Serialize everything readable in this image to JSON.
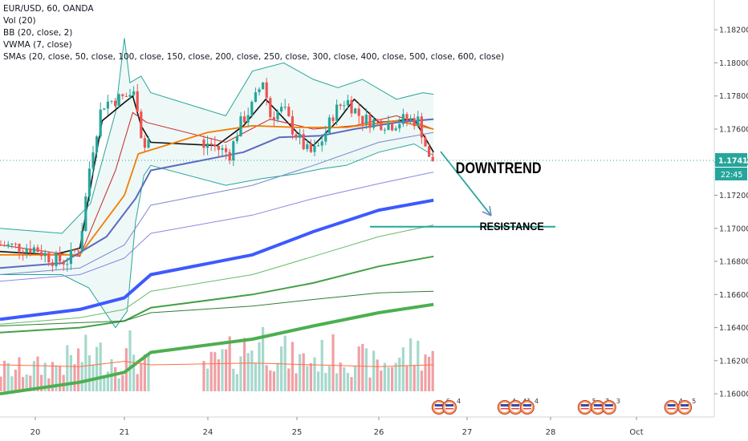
{
  "legend": {
    "symbol_line": "EUR/USD, 60, OANDA",
    "indicators": [
      "Vol (20)",
      "BB (20, close, 2)",
      "VWMA (7, close)",
      "SMAs (20, close, 50, close, 100, close, 150, close, 200, close, 250, close, 300, close, 400, close, 500, close, 600, close)"
    ]
  },
  "last_price": {
    "label": "1.17411",
    "value": 1.17411,
    "countdown": "22:45",
    "color": "#26a69a"
  },
  "annotations": {
    "downtrend": "DOWNTREND",
    "resistance": "RESISTANCE",
    "resistance_level": 1.1701
  },
  "event_markers": [
    {
      "day": 26.68,
      "text": "6"
    },
    {
      "day": 26.8,
      "text": "4"
    },
    {
      "day": 27.45,
      "text": "4"
    },
    {
      "day": 27.58,
      "text": "41"
    },
    {
      "day": 27.72,
      "text": "4"
    },
    {
      "day": 28.4,
      "text": "5"
    },
    {
      "day": 28.55,
      "text": "7"
    },
    {
      "day": 28.68,
      "text": "3"
    },
    {
      "day": 29.45,
      "text": "4"
    },
    {
      "day": 29.62,
      "text": "5"
    }
  ],
  "chart_data": {
    "type": "candlestick",
    "symbol": "EUR/USD",
    "interval": "60",
    "source": "OANDA",
    "x_unit": "day of month (hourly candles)",
    "x_ticks": [
      {
        "day": 20,
        "label": "20"
      },
      {
        "day": 21,
        "label": "21"
      },
      {
        "day": 24,
        "label": "24"
      },
      {
        "day": 25,
        "label": "25"
      },
      {
        "day": 26,
        "label": "26"
      },
      {
        "day": 27,
        "label": "27"
      },
      {
        "day": 28,
        "label": "28"
      },
      {
        "day": 29,
        "label": "Oct"
      }
    ],
    "y_ticks": [
      1.182,
      1.18,
      1.178,
      1.176,
      1.174,
      1.172,
      1.17,
      1.168,
      1.166,
      1.164,
      1.162,
      1.16
    ],
    "y_range": [
      1.1586,
      1.1838
    ],
    "x_range": [
      19.8,
      30.0
    ],
    "colors": {
      "up": "#26a69a",
      "down": "#ef5350",
      "vol_up": "#a6d8cc",
      "vol_down": "#f0a0a4"
    },
    "price_keypoints": [
      [
        19.8,
        1.169
      ],
      [
        20.0,
        1.1688
      ],
      [
        20.2,
        1.1681
      ],
      [
        20.35,
        1.168
      ],
      [
        20.5,
        1.169
      ],
      [
        20.62,
        1.1742
      ],
      [
        20.75,
        1.1775
      ],
      [
        20.9,
        1.1778
      ],
      [
        21.1,
        1.178
      ],
      [
        21.3,
        1.1782
      ],
      [
        21.45,
        1.1777
      ],
      [
        21.55,
        1.1762
      ],
      [
        21.7,
        1.1748
      ],
      [
        21.85,
        1.1754
      ],
      [
        21.95,
        1.175
      ],
      [
        23.85,
        1.1747
      ],
      [
        24.0,
        1.1752
      ],
      [
        24.12,
        1.1748
      ],
      [
        24.25,
        1.1745
      ],
      [
        24.35,
        1.1762
      ],
      [
        24.5,
        1.1774
      ],
      [
        24.62,
        1.179
      ],
      [
        24.7,
        1.1768
      ],
      [
        24.85,
        1.1772
      ],
      [
        24.95,
        1.176
      ],
      [
        25.05,
        1.1752
      ],
      [
        25.15,
        1.1745
      ],
      [
        25.25,
        1.1748
      ],
      [
        25.35,
        1.1758
      ],
      [
        25.45,
        1.177
      ],
      [
        25.6,
        1.1778
      ],
      [
        25.7,
        1.1772
      ],
      [
        25.8,
        1.1766
      ],
      [
        26.0,
        1.1764
      ],
      [
        26.15,
        1.1763
      ],
      [
        26.3,
        1.1766
      ],
      [
        26.45,
        1.1765
      ],
      [
        26.52,
        1.1752
      ],
      [
        26.57,
        1.1741
      ],
      [
        26.62,
        1.1741
      ]
    ],
    "volume_keypoints": [
      [
        19.8,
        0.25
      ],
      [
        20.2,
        0.3
      ],
      [
        20.62,
        0.45
      ],
      [
        21.0,
        0.35
      ],
      [
        21.3,
        0.55
      ],
      [
        21.6,
        0.3
      ],
      [
        24.0,
        0.3
      ],
      [
        24.62,
        0.6
      ],
      [
        25.0,
        0.35
      ],
      [
        25.5,
        0.45
      ],
      [
        26.0,
        0.3
      ],
      [
        26.5,
        0.5
      ],
      [
        26.62,
        0.35
      ]
    ],
    "series": [
      {
        "name": "VWMA (7, close)",
        "color": "#111111",
        "width": 1.6,
        "points": [
          [
            19.8,
            1.1686
          ],
          [
            20.2,
            1.1684
          ],
          [
            20.5,
            1.1688
          ],
          [
            20.75,
            1.1765
          ],
          [
            21.0,
            1.1776
          ],
          [
            21.3,
            1.178
          ],
          [
            21.6,
            1.1762
          ],
          [
            21.95,
            1.1752
          ],
          [
            24.1,
            1.175
          ],
          [
            24.4,
            1.1762
          ],
          [
            24.65,
            1.1778
          ],
          [
            25.0,
            1.1758
          ],
          [
            25.2,
            1.175
          ],
          [
            25.5,
            1.1765
          ],
          [
            25.7,
            1.1778
          ],
          [
            26.0,
            1.1764
          ],
          [
            26.4,
            1.1766
          ],
          [
            26.62,
            1.1746
          ]
        ]
      },
      {
        "name": "SMA 20",
        "color": "#c62828",
        "width": 1.0,
        "points": [
          [
            19.8,
            1.169
          ],
          [
            20.5,
            1.1683
          ],
          [
            20.9,
            1.1735
          ],
          [
            21.3,
            1.177
          ],
          [
            21.8,
            1.1764
          ],
          [
            24.2,
            1.1752
          ],
          [
            24.7,
            1.1766
          ],
          [
            25.2,
            1.176
          ],
          [
            25.7,
            1.1762
          ],
          [
            26.2,
            1.1768
          ],
          [
            26.62,
            1.176
          ]
        ]
      },
      {
        "name": "SMA 50",
        "color": "#f57c00",
        "width": 1.8,
        "points": [
          [
            19.8,
            1.1684
          ],
          [
            20.5,
            1.1684
          ],
          [
            21.0,
            1.172
          ],
          [
            21.5,
            1.1745
          ],
          [
            24.0,
            1.1758
          ],
          [
            24.5,
            1.1762
          ],
          [
            25.0,
            1.1761
          ],
          [
            25.6,
            1.1761
          ],
          [
            26.2,
            1.1765
          ],
          [
            26.62,
            1.176
          ]
        ]
      },
      {
        "name": "SMA 100",
        "color": "#5c6bc0",
        "width": 2.0,
        "points": [
          [
            19.8,
            1.1676
          ],
          [
            20.3,
            1.1679
          ],
          [
            20.8,
            1.1695
          ],
          [
            21.4,
            1.1718
          ],
          [
            21.95,
            1.1735
          ],
          [
            24.4,
            1.1746
          ],
          [
            24.8,
            1.1755
          ],
          [
            25.3,
            1.1756
          ],
          [
            25.7,
            1.176
          ],
          [
            26.2,
            1.1764
          ],
          [
            26.62,
            1.1766
          ]
        ]
      },
      {
        "name": "SMA 150",
        "color": "#7986cb",
        "width": 1.0,
        "points": [
          [
            19.8,
            1.1672
          ],
          [
            20.5,
            1.1676
          ],
          [
            21.0,
            1.169
          ],
          [
            21.95,
            1.1714
          ],
          [
            24.5,
            1.1726
          ],
          [
            25.2,
            1.1738
          ],
          [
            26.0,
            1.1752
          ],
          [
            26.62,
            1.1758
          ]
        ]
      },
      {
        "name": "SMA 200",
        "color": "#8c86e6",
        "width": 1.0,
        "points": [
          [
            19.8,
            1.1668
          ],
          [
            20.5,
            1.1672
          ],
          [
            21.0,
            1.1682
          ],
          [
            21.95,
            1.1697
          ],
          [
            24.5,
            1.1708
          ],
          [
            25.2,
            1.1718
          ],
          [
            26.0,
            1.1727
          ],
          [
            26.62,
            1.1734
          ]
        ]
      },
      {
        "name": "SMA 250",
        "color": "#3d5afe",
        "width": 4.0,
        "points": [
          [
            19.8,
            1.1645
          ],
          [
            20.5,
            1.1651
          ],
          [
            21.0,
            1.1658
          ],
          [
            21.95,
            1.1672
          ],
          [
            24.5,
            1.1684
          ],
          [
            25.2,
            1.1698
          ],
          [
            26.0,
            1.1711
          ],
          [
            26.62,
            1.1717
          ]
        ]
      },
      {
        "name": "SMA 300",
        "color": "#66bb6a",
        "width": 1.0,
        "points": [
          [
            19.8,
            1.1642
          ],
          [
            20.5,
            1.1646
          ],
          [
            21.0,
            1.1651
          ],
          [
            21.95,
            1.1662
          ],
          [
            24.5,
            1.1672
          ],
          [
            25.2,
            1.1683
          ],
          [
            26.0,
            1.1695
          ],
          [
            26.62,
            1.1702
          ]
        ]
      },
      {
        "name": "SMA 400",
        "color": "#43a047",
        "width": 2.0,
        "points": [
          [
            19.8,
            1.1637
          ],
          [
            20.5,
            1.164
          ],
          [
            21.0,
            1.1644
          ],
          [
            21.95,
            1.1652
          ],
          [
            24.5,
            1.166
          ],
          [
            25.2,
            1.1667
          ],
          [
            26.0,
            1.1677
          ],
          [
            26.62,
            1.1683
          ]
        ]
      },
      {
        "name": "SMA 500",
        "color": "#2e7d32",
        "width": 1.0,
        "points": [
          [
            19.8,
            1.1641
          ],
          [
            20.5,
            1.1643
          ],
          [
            21.0,
            1.1644
          ],
          [
            21.95,
            1.1649
          ],
          [
            24.5,
            1.1653
          ],
          [
            25.2,
            1.1657
          ],
          [
            26.0,
            1.1661
          ],
          [
            26.62,
            1.1662
          ]
        ]
      },
      {
        "name": "SMA 600",
        "color": "#4caf50",
        "width": 4.0,
        "points": [
          [
            19.8,
            1.16
          ],
          [
            20.5,
            1.1607
          ],
          [
            21.0,
            1.1613
          ],
          [
            21.95,
            1.1625
          ],
          [
            24.5,
            1.1633
          ],
          [
            25.2,
            1.1641
          ],
          [
            26.0,
            1.1649
          ],
          [
            26.62,
            1.1654
          ]
        ]
      },
      {
        "name": "Vol MA (20)",
        "color": "#ff7043",
        "width": 1.0,
        "area": "volume",
        "points": [
          [
            19.8,
            0.3
          ],
          [
            20.5,
            0.28
          ],
          [
            21.0,
            0.34
          ],
          [
            21.95,
            0.3
          ],
          [
            24.5,
            0.32
          ],
          [
            25.2,
            0.3
          ],
          [
            26.0,
            0.28
          ],
          [
            26.62,
            0.3
          ]
        ]
      }
    ],
    "bollinger": {
      "name": "BB (20, close, 2)",
      "color": "#26a69a",
      "fill": "rgba(38,166,154,0.08)",
      "upper": [
        [
          19.8,
          1.17
        ],
        [
          20.3,
          1.1697
        ],
        [
          20.62,
          1.1715
        ],
        [
          20.9,
          1.177
        ],
        [
          21.0,
          1.1815
        ],
        [
          21.2,
          1.1788
        ],
        [
          21.6,
          1.1792
        ],
        [
          21.95,
          1.1782
        ],
        [
          24.2,
          1.1768
        ],
        [
          24.5,
          1.1795
        ],
        [
          24.85,
          1.18
        ],
        [
          25.2,
          1.179
        ],
        [
          25.5,
          1.1785
        ],
        [
          25.8,
          1.179
        ],
        [
          26.2,
          1.1778
        ],
        [
          26.5,
          1.1782
        ],
        [
          26.62,
          1.1781
        ]
      ],
      "lower": [
        [
          19.8,
          1.1672
        ],
        [
          20.3,
          1.1672
        ],
        [
          20.6,
          1.1664
        ],
        [
          20.9,
          1.164
        ],
        [
          21.1,
          1.165
        ],
        [
          21.4,
          1.1704
        ],
        [
          21.7,
          1.1732
        ],
        [
          21.95,
          1.1738
        ],
        [
          24.2,
          1.1726
        ],
        [
          24.6,
          1.173
        ],
        [
          25.0,
          1.1733
        ],
        [
          25.3,
          1.1736
        ],
        [
          25.6,
          1.1738
        ],
        [
          26.0,
          1.1746
        ],
        [
          26.4,
          1.1751
        ],
        [
          26.62,
          1.1744
        ]
      ]
    }
  }
}
